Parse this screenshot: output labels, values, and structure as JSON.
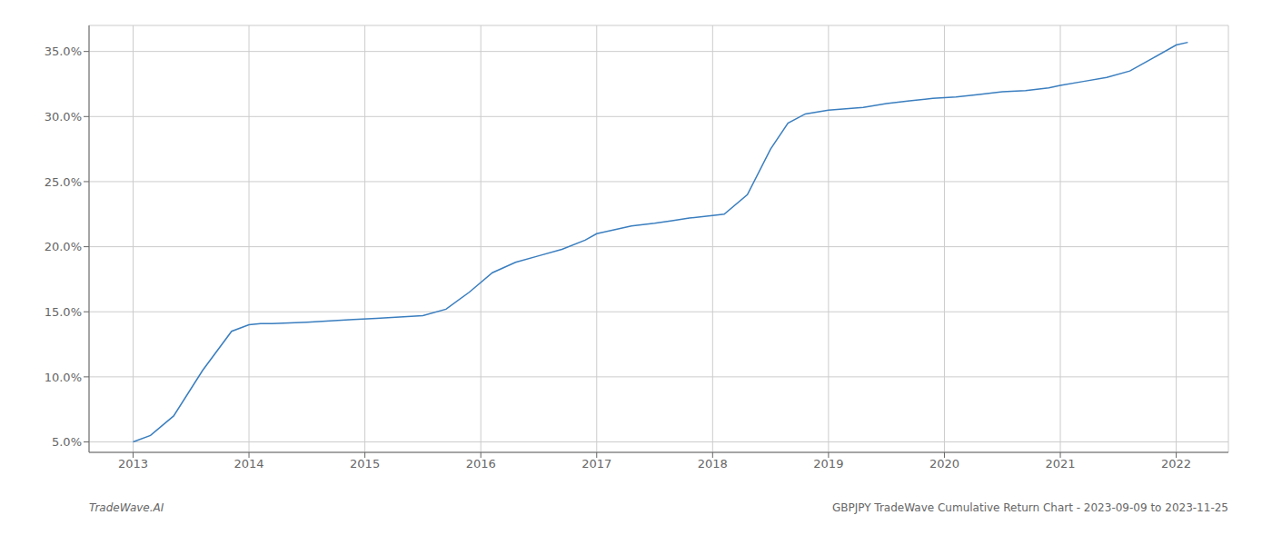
{
  "chart_data": {
    "type": "line",
    "x": [
      2013.0,
      2013.15,
      2013.35,
      2013.6,
      2013.85,
      2014.0,
      2014.1,
      2014.2,
      2014.5,
      2014.7,
      2014.9,
      2015.1,
      2015.3,
      2015.5,
      2015.7,
      2015.9,
      2016.1,
      2016.3,
      2016.5,
      2016.7,
      2016.9,
      2017.0,
      2017.15,
      2017.3,
      2017.5,
      2017.65,
      2017.8,
      2018.0,
      2018.1,
      2018.3,
      2018.5,
      2018.65,
      2018.8,
      2019.0,
      2019.15,
      2019.3,
      2019.5,
      2019.7,
      2019.9,
      2020.1,
      2020.3,
      2020.5,
      2020.7,
      2020.9,
      2021.0,
      2021.2,
      2021.4,
      2021.6,
      2021.8,
      2022.0,
      2022.1
    ],
    "values": [
      5.0,
      5.5,
      7.0,
      10.5,
      13.5,
      14.0,
      14.1,
      14.1,
      14.2,
      14.3,
      14.4,
      14.5,
      14.6,
      14.7,
      15.2,
      16.5,
      18.0,
      18.8,
      19.3,
      19.8,
      20.5,
      21.0,
      21.3,
      21.6,
      21.8,
      22.0,
      22.2,
      22.4,
      22.5,
      24.0,
      27.5,
      29.5,
      30.2,
      30.5,
      30.6,
      30.7,
      31.0,
      31.2,
      31.4,
      31.5,
      31.7,
      31.9,
      32.0,
      32.2,
      32.4,
      32.7,
      33.0,
      33.5,
      34.5,
      35.5,
      35.7
    ],
    "color": "#3a7ebf",
    "grid": true,
    "xlim": [
      2012.62,
      2022.45
    ],
    "xticks": [
      2013,
      2014,
      2015,
      2016,
      2017,
      2018,
      2019,
      2020,
      2021,
      2022
    ],
    "ylim": [
      4.2,
      37.0
    ],
    "yticks": [
      {
        "value": 5.0,
        "label": "5.0%"
      },
      {
        "value": 10.0,
        "label": "10.0%"
      },
      {
        "value": 15.0,
        "label": "15.0%"
      },
      {
        "value": 20.0,
        "label": "20.0%"
      },
      {
        "value": 25.0,
        "label": "25.0%"
      },
      {
        "value": 30.0,
        "label": "30.0%"
      },
      {
        "value": 35.0,
        "label": "35.0%"
      }
    ],
    "annotations": [
      "TradeWave.AI",
      "GBPJPY TradeWave Cumulative Return Chart - 2023-09-09 to 2023-11-25"
    ]
  }
}
